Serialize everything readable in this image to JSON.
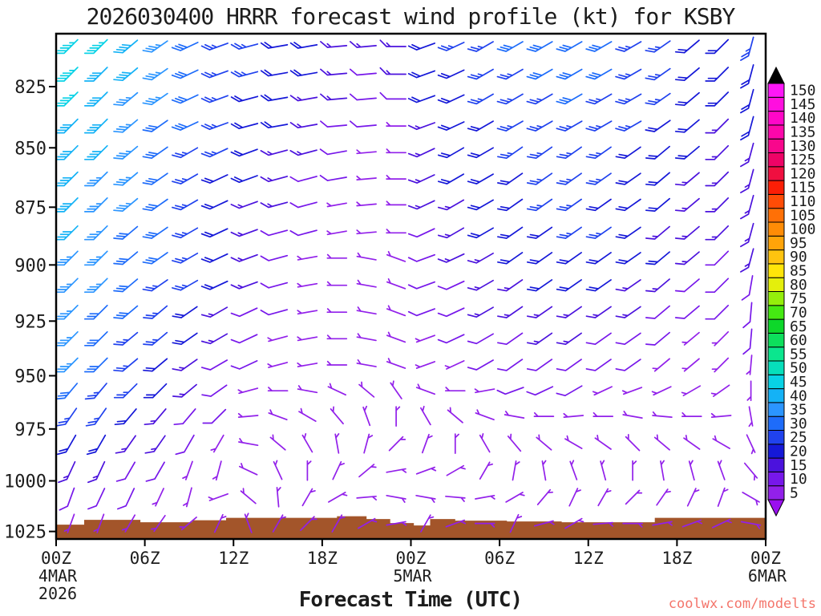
{
  "title": "2026030400 HRRR forecast wind profile (kt) for KSBY",
  "xlabel": "Forecast Time (UTC)",
  "watermark": {
    "text": "coolwx.com/modelts",
    "color": "#f4756b"
  },
  "chart_data": {
    "type": "wind-barb-profile",
    "title": "2026030400 HRRR forecast wind profile (kt) for KSBY",
    "model": "HRRR",
    "init": "2026030400",
    "station": "KSBY",
    "unit": "kt",
    "xlabel": "Forecast Time (UTC)",
    "x_axis": {
      "range_hours": [
        0,
        48
      ],
      "tick_hours": [
        0,
        6,
        12,
        18,
        24,
        30,
        36,
        42,
        48
      ],
      "tick_labels": [
        "00Z",
        "06Z",
        "12Z",
        "18Z",
        "00Z",
        "06Z",
        "12Z",
        "18Z",
        "00Z"
      ],
      "date_labels": [
        {
          "hour": 0,
          "lines": [
            "4MAR",
            "2026"
          ]
        },
        {
          "hour": 24,
          "lines": [
            "5MAR"
          ]
        },
        {
          "hour": 48,
          "lines": [
            "6MAR"
          ]
        }
      ]
    },
    "y_axis": {
      "unit": "hPa",
      "scale": "log",
      "ticks": [
        825,
        850,
        875,
        900,
        925,
        950,
        975,
        1000,
        1025
      ],
      "range": [
        804,
        1030
      ]
    },
    "colorbar": {
      "unit": "kt",
      "values": [
        5,
        10,
        15,
        20,
        25,
        30,
        35,
        40,
        45,
        50,
        55,
        60,
        65,
        70,
        75,
        80,
        85,
        90,
        95,
        100,
        105,
        110,
        115,
        120,
        125,
        130,
        135,
        140,
        145,
        150
      ],
      "colors": [
        "#9220ea",
        "#7717ea",
        "#4b12dd",
        "#1518d8",
        "#2042ee",
        "#1e6cfa",
        "#2b95ff",
        "#14b2f6",
        "#08d2e6",
        "#06dfbb",
        "#0be68e",
        "#0ddf5c",
        "#0dd72a",
        "#45e912",
        "#95ef0b",
        "#e4ef0c",
        "#ffe509",
        "#ffc40f",
        "#ffa409",
        "#ff8c06",
        "#ff7006",
        "#ff4c06",
        "#fb1e06",
        "#f00f40",
        "#ee0366",
        "#f8078c",
        "#fd07ab",
        "#ff07c8",
        "#ff0fdf",
        "#fd17f7"
      ],
      "over_arrow_color": "#000000",
      "under_arrow_color": "#9a10ef"
    },
    "barbs": {
      "hours": [
        1,
        3,
        5,
        7,
        9,
        11,
        13,
        15,
        17,
        19,
        21,
        23,
        25,
        27,
        29,
        31,
        33,
        35,
        37,
        39,
        41,
        43,
        45,
        47
      ],
      "levels_hpa": [
        809,
        820,
        830,
        841,
        852,
        863,
        874,
        886,
        897,
        909,
        921,
        933,
        945,
        957,
        969,
        982,
        995,
        1008,
        1021
      ],
      "cells_spd_at_dir": [
        "45@225 45@225 40@230 35@235 30@245 25@250 25@255 20@260 20@260 15@265 15@265 15@270 20@250 25@245 25@240 30@240 30@240 30@240 30@240 25@240 25@235 20@230 20@225 25@195",
        "45@225 40@225 40@230 35@235 30@245 25@250 25@255 20@260 20@260 15@265 10@265 15@270 20@250 20@245 25@240 25@240 30@240 30@240 30@240 25@240 25@235 20@230 20@225 20@195",
        "45@225 40@225 35@230 35@235 30@245 25@250 20@255 20@260 15@260 15@265 10@265 10@270 20@250 20@245 25@240 25@240 25@240 30@240 25@240 25@240 25@235 20@230 20@225 20@195",
        "40@225 40@225 35@230 30@235 30@245 25@250 20@255 20@260 15@260 10@265 10@265 5@270 15@250 20@245 20@240 25@240 25@240 25@240 25@240 25@240 20@235 20@230 15@225 20@195",
        "40@225 40@225 35@230 30@235 25@240 25@245 20@250 15@255 15@255 10@260 5@265 5@270 15@245 20@240 20@240 25@235 25@235 25@235 25@235 20@235 20@230 20@230 15@225 15@195",
        "40@225 35@225 35@230 30@235 25@240 20@245 20@250 15@255 10@255 10@260 5@265 5@270 15@245 20@240 20@240 20@235 25@235 25@235 25@235 20@235 20@230 15@230 15@225 15@195",
        "40@225 35@225 35@230 30@235 25@240 20@245 15@250 15@255 10@255 5@260 5@265 5@270 15@245 15@240 20@240 20@235 25@235 25@235 20@235 20@235 20@230 15@230 15@225 15@195",
        "40@225 35@225 30@230 30@235 25@240 20@245 15@250 10@255 10@255 5@260 5@265 5@270 10@245 15@240 20@240 20@235 20@235 25@235 25@235 20@235 15@230 15@230 15@225 15@195",
        "35@225 35@225 30@230 30@235 25@240 20@245 15@250 10@255 5@260 5@270 5@280 5@290 10@250 15@245 15@240 20@235 20@235 20@235 20@235 20@235 20@230 15@230 10@225 15@195",
        "35@225 35@225 30@230 25@235 25@240 20@245 15@250 10@255 5@260 5@270 5@280 5@290 10@250 10@245 15@240 15@235 20@235 20@235 20@235 15@235 15@230 10@230 10@225 10@190",
        "35@225 30@225 30@230 25@230 20@235 15@240 10@245 10@255 5@260 5@270 5@280 5@290 10@250 10@245 15@240 15@235 15@235 15@235 15@235 15@235 10@230 10@230 10@225 10@185",
        "35@225 30@225 25@230 25@230 20@235 15@240 10@245 5@255 5@260 5@270 5@280 5@290 5@250 10@245 10@240 10@235 15@235 15@235 10@235 10@235 10@230 5@230 5@225 10@185",
        "35@225 30@225 25@230 20@230 15@235 10@240 10@245 5@255 5@260 5@270 5@280 5@290 5@250 5@245 10@240 10@235 10@235 10@235 10@235 10@235 5@230 5@230 5@225 5@185",
        "30@220 25@220 25@225 20@225 15@230 10@235 5@255 5@270 5@280 5@295 5@310 5@325 5@290 5@270 5@260 10@250 10@245 10@240 5@245 5@250 5@245 5@240 5@235 5@180",
        "25@215 25@215 20@220 15@220 10@220 10@225 5@265 5@290 5@300 5@320 5@340 5@0 5@330 5@310 5@290 5@280 5@270 5@265 5@270 5@280 5@275 5@270 5@265 5@170",
        "20@210 20@210 15@215 15@215 10@210 5@210 5@280 5@310 5@330 5@350 5@15 5@45 5@20 5@0 5@330 5@320 5@310 5@300 5@305 5@315 5@310 5@305 5@300 5@155",
        "15@205 15@205 10@210 10@210 5@200 5@195 5@295 5@335 5@0 5@25 5@50 5@80 5@70 5@60 5@30 5@10 5@350 5@340 5@345 5@0 5@350 5@345 5@340 5@140",
        "10@200 10@205 10@205 5@205 5@195 5@250 5@310 5@355 5@30 5@60 5@85 5@100 5@100 5@95 5@80 5@60 5@40 5@25 5@30 5@45 5@35 5@25 5@20 5@120",
        "5@200 5@200 5@210 5@215 5@230 5@25 5@340 5@30 5@45 5@30 5@60 5@80 5@30 5@70 5@90 5@25 5@75 5@60 5@85 5@90 5@80 5@70 5@65 5@100"
      ]
    },
    "terrain": {
      "color": "#a3552a",
      "spans_h0_h1_ptop": [
        [
          0,
          1.9,
          1021.6
        ],
        [
          1.9,
          5.7,
          1019.2
        ],
        [
          5.7,
          9.2,
          1020.4
        ],
        [
          9.2,
          11.5,
          1019.4
        ],
        [
          11.5,
          19.0,
          1018.2
        ],
        [
          19.0,
          21.0,
          1017.4
        ],
        [
          21.0,
          22.6,
          1018.8
        ],
        [
          22.6,
          24.2,
          1020.8
        ],
        [
          24.2,
          25.3,
          1022.0
        ],
        [
          25.3,
          27.0,
          1018.8
        ],
        [
          27.0,
          30.5,
          1019.6
        ],
        [
          30.5,
          34.2,
          1020.0
        ],
        [
          34.2,
          40.5,
          1020.4
        ],
        [
          40.5,
          48,
          1018.2
        ]
      ]
    }
  }
}
